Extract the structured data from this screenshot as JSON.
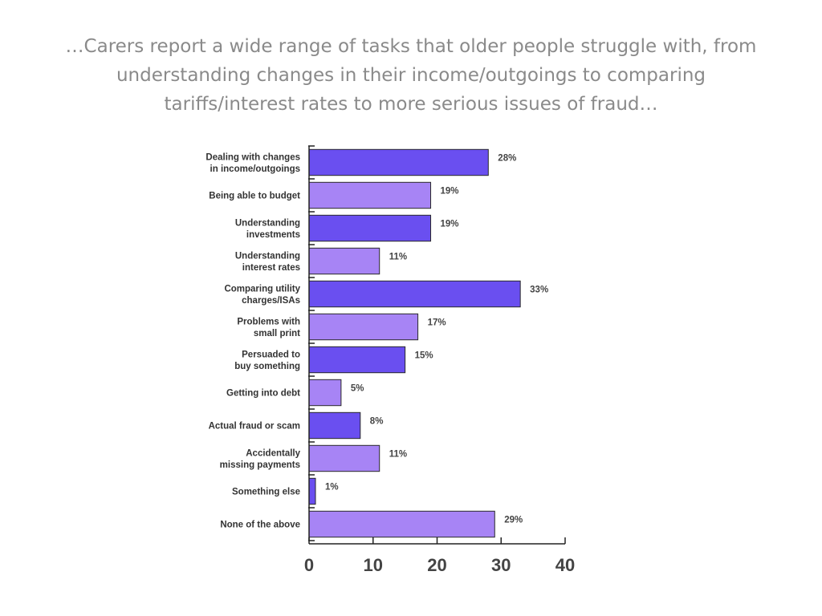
{
  "slide": {
    "title": "…Carers report a wide range of tasks that older people struggle with, from understanding changes in their income/outgoings to comparing tariffs/interest rates to more serious issues of fraud…"
  },
  "colors": {
    "dark_bar": "#6a4ff0",
    "light_bar": "#a784f5",
    "bar_outline": "#2a2a2a",
    "axis": "#222222"
  },
  "chart_data": {
    "type": "bar",
    "orientation": "horizontal",
    "categories": [
      [
        "Dealing with changes",
        "in income/outgoings"
      ],
      [
        "Being able to budget"
      ],
      [
        "Understanding",
        "investments"
      ],
      [
        "Understanding",
        "interest rates"
      ],
      [
        "Comparing utility",
        "charges/ISAs"
      ],
      [
        "Problems with",
        "small print"
      ],
      [
        "Persuaded to",
        "buy something"
      ],
      [
        "Getting into debt"
      ],
      [
        "Actual fraud or scam"
      ],
      [
        "Accidentally",
        "missing payments"
      ],
      [
        "Something else"
      ],
      [
        "None of the above"
      ]
    ],
    "values": [
      28,
      19,
      19,
      11,
      33,
      17,
      15,
      5,
      8,
      11,
      1,
      29
    ],
    "data_labels": [
      "28%",
      "19%",
      "19%",
      "11%",
      "33%",
      "17%",
      "15%",
      "5%",
      "8%",
      "11%",
      "1%",
      "29%"
    ],
    "xlim": [
      0,
      40
    ],
    "xticks": [
      0,
      10,
      20,
      30,
      40
    ],
    "grid": false,
    "legend": "none"
  }
}
